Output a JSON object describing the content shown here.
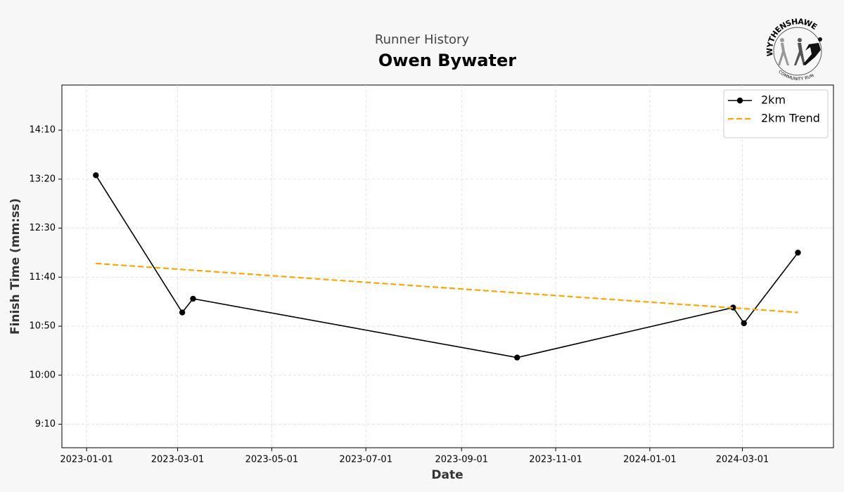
{
  "chart_data": {
    "type": "line",
    "subtitle": "Runner History",
    "title": "Owen Bywater",
    "xlabel": "Date",
    "ylabel": "Finish Time (mm:ss)",
    "xlim": [
      "2022-12-16",
      "2024-04-29"
    ],
    "xticks": [
      "2023-01-01",
      "2023-03-01",
      "2023-05-01",
      "2023-07-01",
      "2023-09-01",
      "2023-11-01",
      "2024-01-01",
      "2024-03-01"
    ],
    "ylim": [
      526,
      896
    ],
    "yticks": [
      {
        "value": 550,
        "label": "9:10"
      },
      {
        "value": 600,
        "label": "10:00"
      },
      {
        "value": 650,
        "label": "10:50"
      },
      {
        "value": 700,
        "label": "11:40"
      },
      {
        "value": 750,
        "label": "12:30"
      },
      {
        "value": 800,
        "label": "13:20"
      },
      {
        "value": 850,
        "label": "14:10"
      }
    ],
    "grid": true,
    "legend": "upper right",
    "series": [
      {
        "name": "2km",
        "color": "#000000",
        "style": "solid",
        "markers": true,
        "x": [
          "2023-01-07",
          "2023-03-04",
          "2023-03-11",
          "2023-10-07",
          "2024-02-24",
          "2024-03-02",
          "2024-04-06"
        ],
        "values": [
          804,
          664,
          678,
          618,
          669,
          653,
          725
        ]
      },
      {
        "name": "2km Trend",
        "color": "#ffa500",
        "style": "dashed",
        "markers": false,
        "x": [
          "2023-01-07",
          "2024-04-06"
        ],
        "values": [
          714,
          664
        ]
      }
    ]
  },
  "logo": {
    "top": "WYTHENSHAWE",
    "bottom": "COMMUNITY RUN"
  }
}
